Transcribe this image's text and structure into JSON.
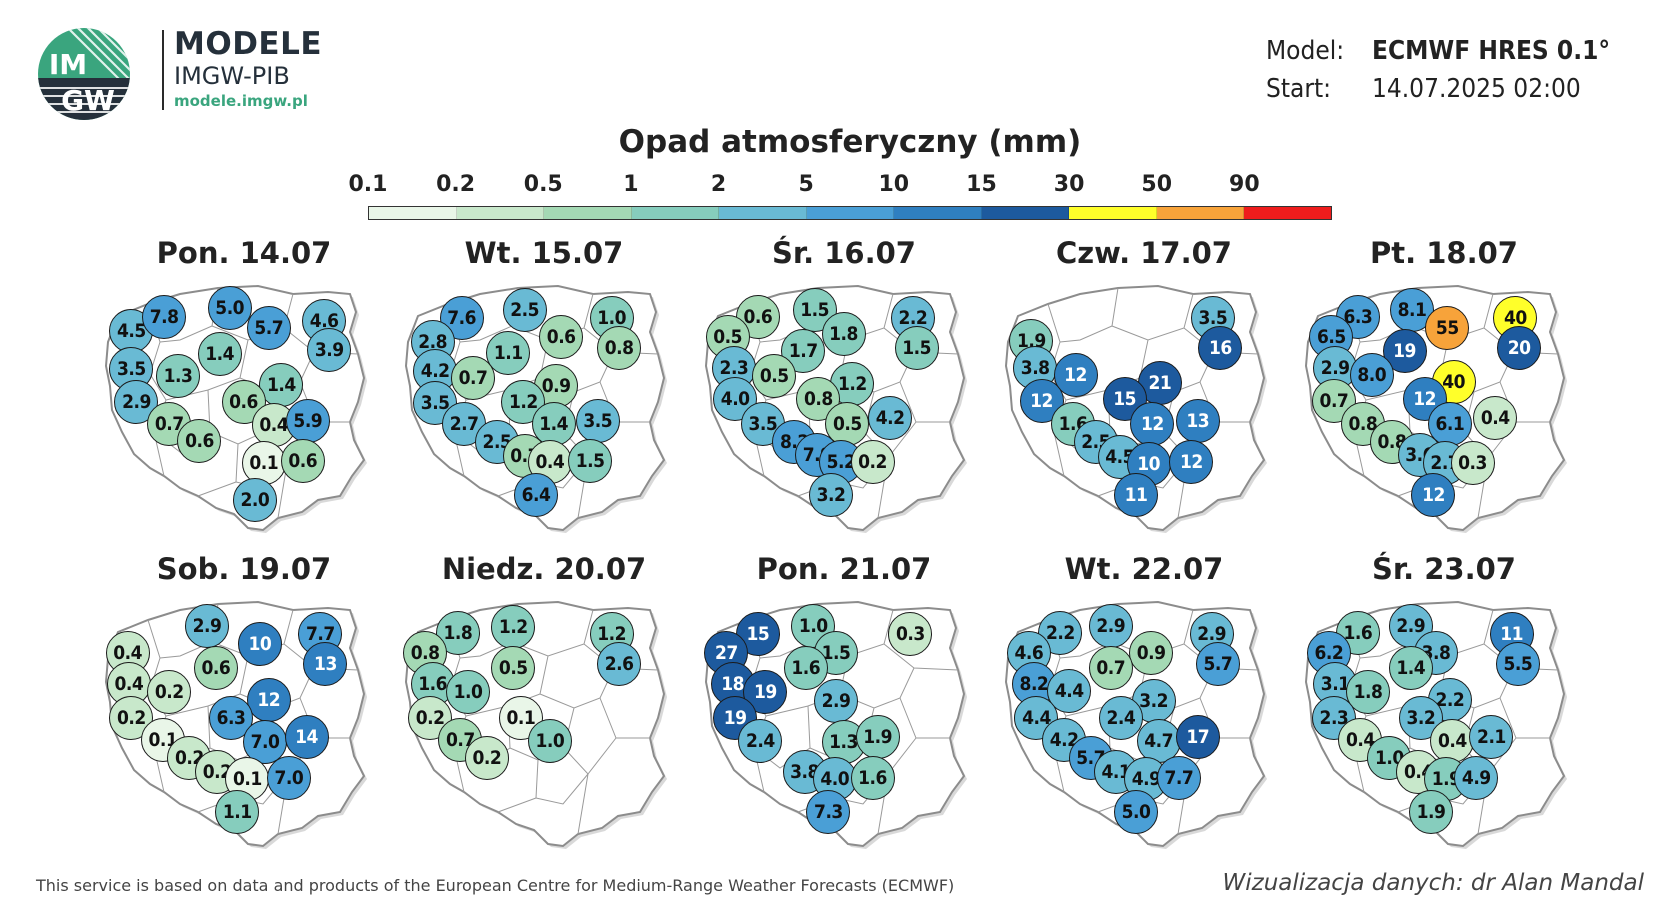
{
  "brand": {
    "logo_text_top": "IM",
    "logo_text_bottom": "GW",
    "title": "MODELE",
    "subtitle": "IMGW-PIB",
    "url": "modele.imgw.pl"
  },
  "meta": {
    "model_label": "Model:",
    "model_value": "ECMWF HRES 0.1°",
    "start_label": "Start:",
    "start_value": "14.07.2025 02:00"
  },
  "legend": {
    "title": "Opad atmosferyczny (mm)",
    "ticks": [
      "0.1",
      "0.2",
      "0.5",
      "1",
      "2",
      "5",
      "10",
      "15",
      "30",
      "50",
      "90"
    ],
    "colors": [
      "#e9f6e8",
      "#c8e8cb",
      "#a4d9b4",
      "#86cdbd",
      "#69bad4",
      "#4a9fd6",
      "#2f7fc0",
      "#1d5a9e",
      "#ffff2a",
      "#f7a33a",
      "#ee1c1c"
    ]
  },
  "colors": {
    "map_outline": "#8c8c8c",
    "voivodeship_lines": "#9a9a9a",
    "bubble_text_dark": "#111111",
    "bubble_text_light": "#ffffff"
  },
  "maps": [
    {
      "title": "Pon. 14.07",
      "points": [
        {
          "v": "4.5",
          "x": 0.085,
          "y": 0.12
        },
        {
          "v": "7.8",
          "x": 0.215,
          "y": 0.06
        },
        {
          "v": "5.0",
          "x": 0.475,
          "y": 0.02
        },
        {
          "v": "4.6",
          "x": 0.85,
          "y": 0.075
        },
        {
          "v": "5.7",
          "x": 0.63,
          "y": 0.11
        },
        {
          "v": "3.9",
          "x": 0.87,
          "y": 0.205
        },
        {
          "v": "1.4",
          "x": 0.435,
          "y": 0.225
        },
        {
          "v": "3.5",
          "x": 0.085,
          "y": 0.295
        },
        {
          "v": "1.3",
          "x": 0.27,
          "y": 0.325
        },
        {
          "v": "1.4",
          "x": 0.68,
          "y": 0.365
        },
        {
          "v": "0.6",
          "x": 0.53,
          "y": 0.44
        },
        {
          "v": "2.9",
          "x": 0.105,
          "y": 0.44
        },
        {
          "v": "0.7",
          "x": 0.235,
          "y": 0.54
        },
        {
          "v": "0.4",
          "x": 0.65,
          "y": 0.545
        },
        {
          "v": "5.9",
          "x": 0.785,
          "y": 0.525
        },
        {
          "v": "0.6",
          "x": 0.355,
          "y": 0.615
        },
        {
          "v": "0.1",
          "x": 0.61,
          "y": 0.715
        },
        {
          "v": "0.6",
          "x": 0.765,
          "y": 0.705
        },
        {
          "v": "2.0",
          "x": 0.575,
          "y": 0.885
        }
      ]
    },
    {
      "title": "Wt. 15.07",
      "points": [
        {
          "v": "7.6",
          "x": 0.205,
          "y": 0.065
        },
        {
          "v": "2.5",
          "x": 0.455,
          "y": 0.025
        },
        {
          "v": "1.0",
          "x": 0.8,
          "y": 0.065
        },
        {
          "v": "2.8",
          "x": 0.09,
          "y": 0.17
        },
        {
          "v": "0.6",
          "x": 0.6,
          "y": 0.15
        },
        {
          "v": "0.8",
          "x": 0.83,
          "y": 0.2
        },
        {
          "v": "1.1",
          "x": 0.39,
          "y": 0.22
        },
        {
          "v": "4.2",
          "x": 0.1,
          "y": 0.3
        },
        {
          "v": "0.7",
          "x": 0.25,
          "y": 0.335
        },
        {
          "v": "0.9",
          "x": 0.58,
          "y": 0.37
        },
        {
          "v": "1.2",
          "x": 0.45,
          "y": 0.44
        },
        {
          "v": "3.5",
          "x": 0.1,
          "y": 0.445
        },
        {
          "v": "2.7",
          "x": 0.215,
          "y": 0.54
        },
        {
          "v": "1.4",
          "x": 0.57,
          "y": 0.54
        },
        {
          "v": "3.5",
          "x": 0.745,
          "y": 0.525
        },
        {
          "v": "2.5",
          "x": 0.345,
          "y": 0.62
        },
        {
          "v": "0.7",
          "x": 0.455,
          "y": 0.685
        },
        {
          "v": "0.4",
          "x": 0.555,
          "y": 0.71
        },
        {
          "v": "1.5",
          "x": 0.715,
          "y": 0.705
        },
        {
          "v": "6.4",
          "x": 0.5,
          "y": 0.86
        }
      ]
    },
    {
      "title": "Śr. 16.07",
      "points": [
        {
          "v": "0.6",
          "x": 0.19,
          "y": 0.06
        },
        {
          "v": "1.5",
          "x": 0.415,
          "y": 0.025
        },
        {
          "v": "2.2",
          "x": 0.805,
          "y": 0.065
        },
        {
          "v": "0.5",
          "x": 0.07,
          "y": 0.15
        },
        {
          "v": "1.8",
          "x": 0.53,
          "y": 0.135
        },
        {
          "v": "1.5",
          "x": 0.82,
          "y": 0.2
        },
        {
          "v": "1.7",
          "x": 0.37,
          "y": 0.21
        },
        {
          "v": "2.3",
          "x": 0.095,
          "y": 0.29
        },
        {
          "v": "0.5",
          "x": 0.255,
          "y": 0.325
        },
        {
          "v": "1.2",
          "x": 0.565,
          "y": 0.36
        },
        {
          "v": "4.0",
          "x": 0.1,
          "y": 0.43
        },
        {
          "v": "0.8",
          "x": 0.43,
          "y": 0.43
        },
        {
          "v": "3.5",
          "x": 0.21,
          "y": 0.54
        },
        {
          "v": "0.5",
          "x": 0.545,
          "y": 0.54
        },
        {
          "v": "4.2",
          "x": 0.715,
          "y": 0.515
        },
        {
          "v": "8.2",
          "x": 0.335,
          "y": 0.62
        },
        {
          "v": "7.9",
          "x": 0.425,
          "y": 0.68
        },
        {
          "v": "5.2",
          "x": 0.52,
          "y": 0.71
        },
        {
          "v": "0.2",
          "x": 0.645,
          "y": 0.71
        },
        {
          "v": "3.2",
          "x": 0.48,
          "y": 0.86
        }
      ]
    },
    {
      "title": "Czw. 17.07",
      "points": [
        {
          "v": "3.5",
          "x": 0.805,
          "y": 0.065
        },
        {
          "v": "1.9",
          "x": 0.085,
          "y": 0.165
        },
        {
          "v": "16",
          "x": 0.835,
          "y": 0.2
        },
        {
          "v": "3.8",
          "x": 0.1,
          "y": 0.29
        },
        {
          "v": "12",
          "x": 0.26,
          "y": 0.32
        },
        {
          "v": "21",
          "x": 0.595,
          "y": 0.355
        },
        {
          "v": "12",
          "x": 0.125,
          "y": 0.435
        },
        {
          "v": "15",
          "x": 0.455,
          "y": 0.43
        },
        {
          "v": "1.6",
          "x": 0.25,
          "y": 0.54
        },
        {
          "v": "12",
          "x": 0.565,
          "y": 0.54
        },
        {
          "v": "13",
          "x": 0.745,
          "y": 0.525
        },
        {
          "v": "2.5",
          "x": 0.34,
          "y": 0.62
        },
        {
          "v": "4.5",
          "x": 0.435,
          "y": 0.69
        },
        {
          "v": "10",
          "x": 0.55,
          "y": 0.72
        },
        {
          "v": "12",
          "x": 0.72,
          "y": 0.71
        },
        {
          "v": "11",
          "x": 0.5,
          "y": 0.86
        }
      ]
    },
    {
      "title": "Pt. 18.07",
      "points": [
        {
          "v": "6.3",
          "x": 0.19,
          "y": 0.06
        },
        {
          "v": "8.1",
          "x": 0.405,
          "y": 0.025
        },
        {
          "v": "40",
          "x": 0.815,
          "y": 0.065
        },
        {
          "v": "55",
          "x": 0.545,
          "y": 0.11
        },
        {
          "v": "6.5",
          "x": 0.085,
          "y": 0.15
        },
        {
          "v": "20",
          "x": 0.83,
          "y": 0.2
        },
        {
          "v": "19",
          "x": 0.375,
          "y": 0.21
        },
        {
          "v": "2.9",
          "x": 0.1,
          "y": 0.29
        },
        {
          "v": "8.0",
          "x": 0.245,
          "y": 0.32
        },
        {
          "v": "40",
          "x": 0.57,
          "y": 0.35
        },
        {
          "v": "0.7",
          "x": 0.095,
          "y": 0.435
        },
        {
          "v": "12",
          "x": 0.455,
          "y": 0.43
        },
        {
          "v": "0.8",
          "x": 0.21,
          "y": 0.54
        },
        {
          "v": "6.1",
          "x": 0.555,
          "y": 0.54
        },
        {
          "v": "0.4",
          "x": 0.735,
          "y": 0.515
        },
        {
          "v": "0.8",
          "x": 0.325,
          "y": 0.62
        },
        {
          "v": "3.6",
          "x": 0.435,
          "y": 0.68
        },
        {
          "v": "2.7",
          "x": 0.535,
          "y": 0.715
        },
        {
          "v": "0.3",
          "x": 0.645,
          "y": 0.715
        },
        {
          "v": "12",
          "x": 0.49,
          "y": 0.86
        }
      ]
    },
    {
      "title": "Sob. 19.07",
      "points": [
        {
          "v": "2.9",
          "x": 0.385,
          "y": 0.025
        },
        {
          "v": "7.7",
          "x": 0.835,
          "y": 0.065
        },
        {
          "v": "10",
          "x": 0.595,
          "y": 0.11
        },
        {
          "v": "0.4",
          "x": 0.07,
          "y": 0.15
        },
        {
          "v": "13",
          "x": 0.855,
          "y": 0.2
        },
        {
          "v": "0.6",
          "x": 0.42,
          "y": 0.215
        },
        {
          "v": "0.4",
          "x": 0.075,
          "y": 0.29
        },
        {
          "v": "0.2",
          "x": 0.235,
          "y": 0.325
        },
        {
          "v": "12",
          "x": 0.63,
          "y": 0.36
        },
        {
          "v": "6.3",
          "x": 0.48,
          "y": 0.44
        },
        {
          "v": "0.2",
          "x": 0.085,
          "y": 0.44
        },
        {
          "v": "0.1",
          "x": 0.21,
          "y": 0.54
        },
        {
          "v": "7.0",
          "x": 0.615,
          "y": 0.55
        },
        {
          "v": "14",
          "x": 0.78,
          "y": 0.525
        },
        {
          "v": "0.2",
          "x": 0.315,
          "y": 0.62
        },
        {
          "v": "0.2",
          "x": 0.425,
          "y": 0.685
        },
        {
          "v": "0.1",
          "x": 0.545,
          "y": 0.715
        },
        {
          "v": "7.0",
          "x": 0.71,
          "y": 0.71
        },
        {
          "v": "1.1",
          "x": 0.505,
          "y": 0.865
        }
      ]
    },
    {
      "title": "Niedz. 20.07",
      "points": [
        {
          "v": "1.8",
          "x": 0.19,
          "y": 0.06
        },
        {
          "v": "1.2",
          "x": 0.41,
          "y": 0.03
        },
        {
          "v": "1.2",
          "x": 0.8,
          "y": 0.065
        },
        {
          "v": "0.8",
          "x": 0.06,
          "y": 0.15
        },
        {
          "v": "2.6",
          "x": 0.83,
          "y": 0.2
        },
        {
          "v": "0.5",
          "x": 0.41,
          "y": 0.215
        },
        {
          "v": "1.6",
          "x": 0.09,
          "y": 0.29
        },
        {
          "v": "1.0",
          "x": 0.23,
          "y": 0.325
        },
        {
          "v": "0.1",
          "x": 0.44,
          "y": 0.44
        },
        {
          "v": "0.2",
          "x": 0.08,
          "y": 0.44
        },
        {
          "v": "1.0",
          "x": 0.555,
          "y": 0.545
        },
        {
          "v": "0.7",
          "x": 0.2,
          "y": 0.54
        },
        {
          "v": "0.2",
          "x": 0.305,
          "y": 0.62
        }
      ]
    },
    {
      "title": "Pon. 21.07",
      "points": [
        {
          "v": "15",
          "x": 0.19,
          "y": 0.065
        },
        {
          "v": "1.0",
          "x": 0.41,
          "y": 0.025
        },
        {
          "v": "0.3",
          "x": 0.795,
          "y": 0.065
        },
        {
          "v": "27",
          "x": 0.065,
          "y": 0.15
        },
        {
          "v": "1.5",
          "x": 0.5,
          "y": 0.15
        },
        {
          "v": "1.6",
          "x": 0.38,
          "y": 0.215
        },
        {
          "v": "18",
          "x": 0.09,
          "y": 0.29
        },
        {
          "v": "19",
          "x": 0.22,
          "y": 0.325
        },
        {
          "v": "2.9",
          "x": 0.5,
          "y": 0.365
        },
        {
          "v": "19",
          "x": 0.1,
          "y": 0.44
        },
        {
          "v": "2.4",
          "x": 0.2,
          "y": 0.545
        },
        {
          "v": "1.3",
          "x": 0.53,
          "y": 0.55
        },
        {
          "v": "1.9",
          "x": 0.665,
          "y": 0.525
        },
        {
          "v": "3.8",
          "x": 0.375,
          "y": 0.685
        },
        {
          "v": "4.0",
          "x": 0.495,
          "y": 0.715
        },
        {
          "v": "1.6",
          "x": 0.645,
          "y": 0.71
        },
        {
          "v": "7.3",
          "x": 0.47,
          "y": 0.865
        }
      ]
    },
    {
      "title": "Wt. 22.07",
      "points": [
        {
          "v": "2.2",
          "x": 0.2,
          "y": 0.06
        },
        {
          "v": "2.9",
          "x": 0.4,
          "y": 0.025
        },
        {
          "v": "2.9",
          "x": 0.8,
          "y": 0.065
        },
        {
          "v": "4.6",
          "x": 0.075,
          "y": 0.15
        },
        {
          "v": "0.9",
          "x": 0.56,
          "y": 0.15
        },
        {
          "v": "5.7",
          "x": 0.825,
          "y": 0.2
        },
        {
          "v": "0.7",
          "x": 0.4,
          "y": 0.215
        },
        {
          "v": "8.2",
          "x": 0.095,
          "y": 0.29
        },
        {
          "v": "4.4",
          "x": 0.235,
          "y": 0.32
        },
        {
          "v": "3.2",
          "x": 0.57,
          "y": 0.365
        },
        {
          "v": "4.4",
          "x": 0.105,
          "y": 0.44
        },
        {
          "v": "2.4",
          "x": 0.44,
          "y": 0.44
        },
        {
          "v": "4.2",
          "x": 0.215,
          "y": 0.54
        },
        {
          "v": "4.7",
          "x": 0.59,
          "y": 0.545
        },
        {
          "v": "17",
          "x": 0.745,
          "y": 0.525
        },
        {
          "v": "5.7",
          "x": 0.32,
          "y": 0.62
        },
        {
          "v": "4.1",
          "x": 0.42,
          "y": 0.685
        },
        {
          "v": "4.9",
          "x": 0.54,
          "y": 0.715
        },
        {
          "v": "7.7",
          "x": 0.67,
          "y": 0.71
        },
        {
          "v": "5.0",
          "x": 0.5,
          "y": 0.865
        }
      ]
    },
    {
      "title": "Śr. 23.07",
      "points": [
        {
          "v": "1.6",
          "x": 0.19,
          "y": 0.06
        },
        {
          "v": "2.9",
          "x": 0.4,
          "y": 0.025
        },
        {
          "v": "11",
          "x": 0.8,
          "y": 0.065
        },
        {
          "v": "6.2",
          "x": 0.075,
          "y": 0.15
        },
        {
          "v": "3.8",
          "x": 0.5,
          "y": 0.15
        },
        {
          "v": "5.5",
          "x": 0.825,
          "y": 0.2
        },
        {
          "v": "1.4",
          "x": 0.4,
          "y": 0.215
        },
        {
          "v": "3.1",
          "x": 0.1,
          "y": 0.29
        },
        {
          "v": "1.8",
          "x": 0.23,
          "y": 0.325
        },
        {
          "v": "2.2",
          "x": 0.555,
          "y": 0.36
        },
        {
          "v": "2.3",
          "x": 0.095,
          "y": 0.44
        },
        {
          "v": "3.2",
          "x": 0.44,
          "y": 0.44
        },
        {
          "v": "0.4",
          "x": 0.2,
          "y": 0.54
        },
        {
          "v": "0.4",
          "x": 0.565,
          "y": 0.545
        },
        {
          "v": "2.1",
          "x": 0.72,
          "y": 0.525
        },
        {
          "v": "1.0",
          "x": 0.315,
          "y": 0.62
        },
        {
          "v": "0.4",
          "x": 0.43,
          "y": 0.685
        },
        {
          "v": "1.9",
          "x": 0.54,
          "y": 0.715
        },
        {
          "v": "4.9",
          "x": 0.66,
          "y": 0.71
        },
        {
          "v": "1.9",
          "x": 0.48,
          "y": 0.865
        }
      ]
    }
  ],
  "footer": {
    "left": "This service is based on data and products of the European Centre for Medium-Range Weather Forecasts (ECMWF)",
    "right": "Wizualizacja danych: dr Alan Mandal"
  }
}
